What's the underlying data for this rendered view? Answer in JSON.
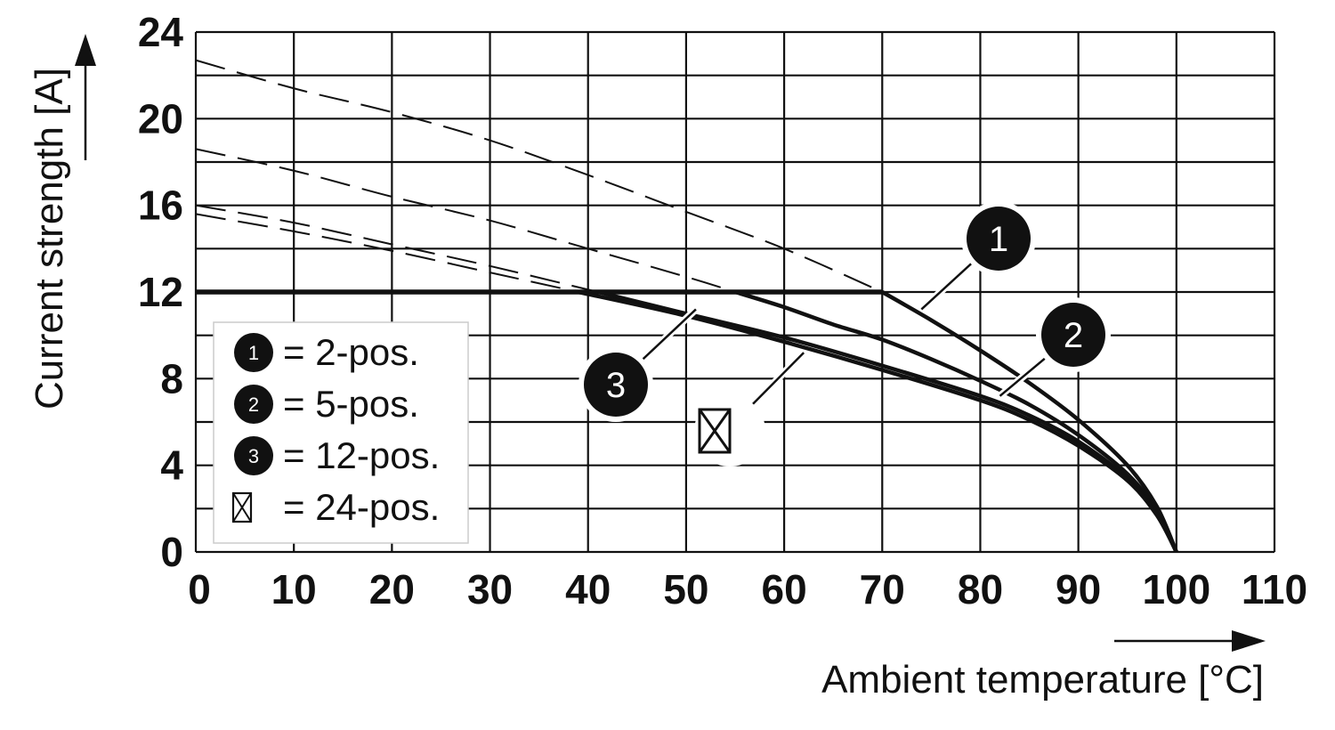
{
  "chart_data": {
    "type": "line",
    "xlabel": "Ambient temperature [°C]",
    "ylabel": "Current strength [A]",
    "xlim": [
      0,
      110
    ],
    "ylim": [
      0,
      24
    ],
    "xticks": [
      0,
      10,
      20,
      30,
      40,
      50,
      60,
      70,
      80,
      90,
      100,
      110
    ],
    "yticks": [
      0,
      4,
      8,
      12,
      16,
      20,
      24
    ],
    "x_tick_labels": [
      "0",
      "10",
      "20",
      "30",
      "40",
      "50",
      "60",
      "70",
      "80",
      "90",
      "100",
      "110"
    ],
    "y_tick_labels": [
      "0",
      "4",
      "8",
      "12",
      "16",
      "20",
      "24"
    ],
    "grid": true,
    "limit_line": {
      "y": 12,
      "x": [
        0,
        70
      ]
    },
    "series": [
      {
        "name": "2-pos.",
        "marker": "1",
        "dashed": {
          "x": [
            0,
            10,
            20,
            30,
            40,
            50,
            60,
            70
          ],
          "y": [
            22.7,
            21.4,
            20.3,
            19.0,
            17.4,
            15.7,
            14.0,
            12.0
          ]
        },
        "solid": {
          "x": [
            70,
            75,
            80,
            85,
            90,
            95,
            98,
            100
          ],
          "y": [
            12.0,
            10.7,
            9.3,
            7.8,
            6.1,
            4.0,
            2.1,
            0
          ]
        }
      },
      {
        "name": "5-pos.",
        "marker": "2",
        "dashed": {
          "x": [
            0,
            10,
            20,
            30,
            40,
            50,
            55
          ],
          "y": [
            18.6,
            17.6,
            16.4,
            15.3,
            14.0,
            12.7,
            12.0
          ]
        },
        "solid": {
          "x": [
            55,
            60,
            65,
            70,
            75,
            80,
            85,
            90,
            95,
            98,
            100
          ],
          "y": [
            12.0,
            11.3,
            10.5,
            9.8,
            8.9,
            7.9,
            6.8,
            5.4,
            3.6,
            1.9,
            0
          ]
        }
      },
      {
        "name": "12-pos.",
        "marker": "3",
        "dashed": {
          "x": [
            0,
            10,
            20,
            30,
            41
          ],
          "y": [
            16.0,
            15.2,
            14.2,
            13.2,
            12.0
          ]
        },
        "solid": {
          "x": [
            41,
            50,
            60,
            70,
            80,
            85,
            90,
            95,
            98,
            100
          ],
          "y": [
            12.0,
            11.0,
            9.9,
            8.6,
            7.2,
            6.3,
            5.1,
            3.4,
            1.8,
            0
          ]
        }
      },
      {
        "name": "24-pos.",
        "marker": "crossed-box",
        "dashed": {
          "x": [
            0,
            10,
            20,
            30,
            39
          ],
          "y": [
            15.6,
            14.8,
            13.9,
            12.9,
            12.0
          ]
        },
        "solid": {
          "x": [
            39,
            50,
            60,
            70,
            80,
            85,
            90,
            95,
            98,
            100
          ],
          "y": [
            12.0,
            10.9,
            9.7,
            8.4,
            7.0,
            6.1,
            4.9,
            3.3,
            1.7,
            0
          ]
        }
      }
    ],
    "markers": [
      {
        "label": "1",
        "series": "2-pos.",
        "leader_to": [
          74,
          11.2
        ]
      },
      {
        "label": "2",
        "series": "5-pos.",
        "leader_to": [
          82,
          7.2
        ]
      },
      {
        "label": "3",
        "series": "12-pos.",
        "leader_to": [
          51,
          11.2
        ]
      },
      {
        "label": "crossed-box",
        "series": "24-pos.",
        "leader_to": [
          62,
          9.2
        ]
      }
    ],
    "legend": {
      "placement": "bottom-left",
      "items": [
        {
          "symbol": "1",
          "text": "= 2-pos."
        },
        {
          "symbol": "2",
          "text": "= 5-pos."
        },
        {
          "symbol": "3",
          "text": "= 12-pos."
        },
        {
          "symbol": "crossed-box",
          "text": "= 24-pos."
        }
      ]
    }
  }
}
